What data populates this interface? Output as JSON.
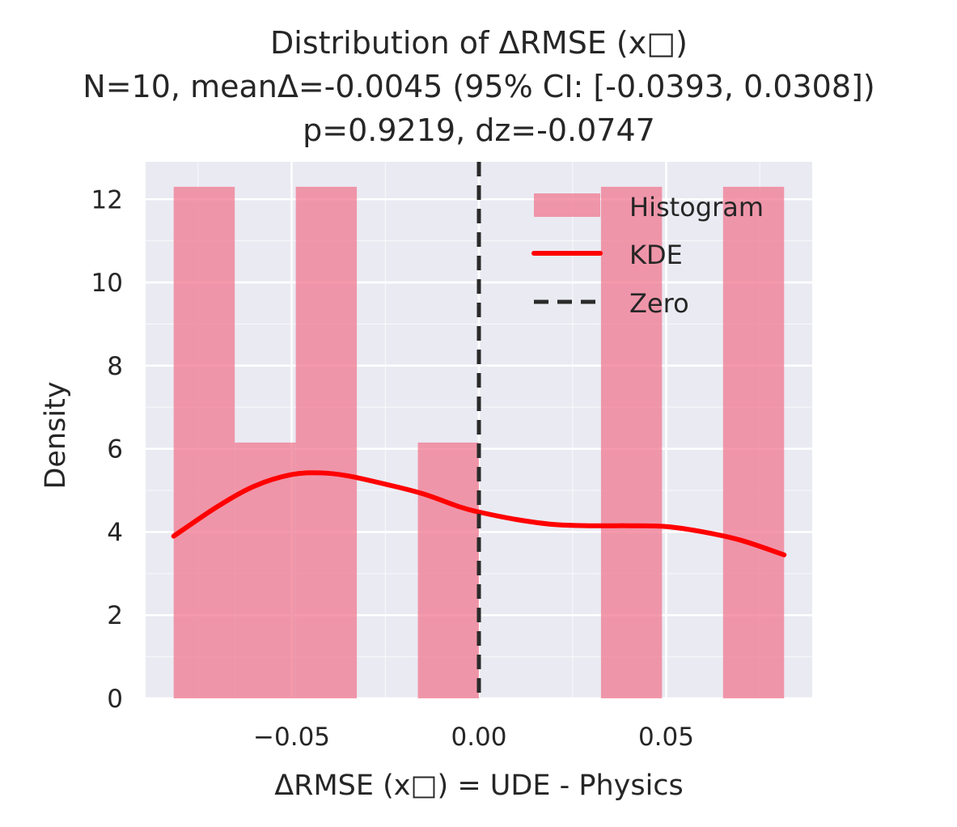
{
  "chart_data": {
    "type": "bar",
    "title_lines": [
      "Distribution of ΔRMSE (x□)",
      "N=10, meanΔ=-0.0045 (95% CI: [-0.0393, 0.0308])",
      "p=0.9219, dz=-0.0747"
    ],
    "xlabel": "ΔRMSE (x□) = UDE - Physics",
    "ylabel": "Density",
    "xlim": [
      -0.089,
      0.089
    ],
    "ylim": [
      0,
      12.9
    ],
    "xticks": [
      -0.05,
      0.0,
      0.05
    ],
    "xtick_labels": [
      "−0.05",
      "0.00",
      "0.05"
    ],
    "yticks": [
      0,
      2,
      4,
      6,
      8,
      10,
      12
    ],
    "ytick_labels": [
      "0",
      "2",
      "4",
      "6",
      "8",
      "10",
      "12"
    ],
    "grid": true,
    "legend_position": "upper-right",
    "histogram": {
      "name": "Histogram",
      "color": "#f07890",
      "bins": [
        {
          "x0": -0.0815,
          "x1": -0.0652,
          "density": 12.3
        },
        {
          "x0": -0.0652,
          "x1": -0.0489,
          "density": 6.15
        },
        {
          "x0": -0.0489,
          "x1": -0.0326,
          "density": 12.3
        },
        {
          "x0": -0.0326,
          "x1": -0.0163,
          "density": 0
        },
        {
          "x0": -0.0163,
          "x1": 0.0,
          "density": 6.15
        },
        {
          "x0": 0.0,
          "x1": 0.0163,
          "density": 0
        },
        {
          "x0": 0.0163,
          "x1": 0.0326,
          "density": 0
        },
        {
          "x0": 0.0326,
          "x1": 0.0489,
          "density": 12.3
        },
        {
          "x0": 0.0489,
          "x1": 0.0652,
          "density": 0
        },
        {
          "x0": 0.0652,
          "x1": 0.0815,
          "density": 12.3
        }
      ]
    },
    "kde": {
      "name": "KDE",
      "color": "#ff0000",
      "x": [
        -0.0815,
        -0.07,
        -0.06,
        -0.05,
        -0.042,
        -0.035,
        -0.025,
        -0.015,
        -0.005,
        0.0,
        0.01,
        0.02,
        0.03,
        0.04,
        0.05,
        0.06,
        0.07,
        0.0815
      ],
      "y": [
        3.9,
        4.6,
        5.1,
        5.38,
        5.42,
        5.35,
        5.15,
        4.92,
        4.6,
        4.48,
        4.3,
        4.18,
        4.15,
        4.15,
        4.13,
        4.0,
        3.8,
        3.45
      ]
    },
    "zero_line": {
      "name": "Zero",
      "x": 0.0,
      "color": "#2a2a2a"
    },
    "colors": {
      "plot_background": "#eaeaf2",
      "grid": "#ffffff"
    }
  }
}
